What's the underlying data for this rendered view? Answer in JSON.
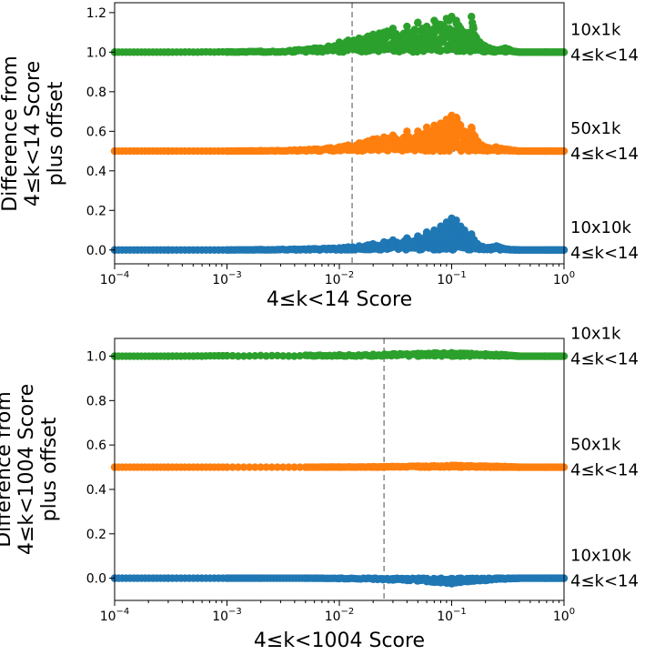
{
  "chart_data": [
    {
      "type": "scatter",
      "id": "top",
      "xscale": "log",
      "xlim": [
        0.0001,
        1
      ],
      "ylim": [
        -0.07,
        1.25
      ],
      "xlabel": "4≤k<14  Score",
      "ylabel_lines": [
        "Difference from",
        "4≤k<14 Score",
        "plus offset"
      ],
      "x_ticks": [
        {
          "value": 0.0001,
          "base": "10",
          "exp": "−4"
        },
        {
          "value": 0.001,
          "base": "10",
          "exp": "−3"
        },
        {
          "value": 0.01,
          "base": "10",
          "exp": "−2"
        },
        {
          "value": 0.1,
          "base": "10",
          "exp": "−1"
        },
        {
          "value": 1,
          "base": "10",
          "exp": "0"
        }
      ],
      "y_ticks": [
        {
          "value": 0.0,
          "label": "0.0"
        },
        {
          "value": 0.2,
          "label": "0.2"
        },
        {
          "value": 0.4,
          "label": "0.4"
        },
        {
          "value": 0.6,
          "label": "0.6"
        },
        {
          "value": 0.8,
          "label": "0.8"
        },
        {
          "value": 1.0,
          "label": "1.0"
        },
        {
          "value": 1.2,
          "label": "1.2"
        }
      ],
      "vline_x": 0.013,
      "series": [
        {
          "name": "10x10k",
          "sublabel": "4≤k<14",
          "color": "#1f77b4",
          "offset": 0.0,
          "points": [
            [
              0.0001,
              0.0
            ],
            [
              0.0003,
              0.0
            ],
            [
              0.001,
              0.0
            ],
            [
              0.002,
              0.002
            ],
            [
              0.004,
              0.004
            ],
            [
              0.006,
              0.006
            ],
            [
              0.008,
              0.008
            ],
            [
              0.01,
              0.01
            ],
            [
              0.012,
              0.015
            ],
            [
              0.015,
              0.02
            ],
            [
              0.018,
              0.025
            ],
            [
              0.02,
              0.03
            ],
            [
              0.025,
              0.04
            ],
            [
              0.03,
              0.05
            ],
            [
              0.035,
              0.03
            ],
            [
              0.04,
              0.06
            ],
            [
              0.045,
              0.04
            ],
            [
              0.05,
              0.07
            ],
            [
              0.055,
              0.05
            ],
            [
              0.06,
              0.09
            ],
            [
              0.065,
              0.06
            ],
            [
              0.07,
              0.1
            ],
            [
              0.075,
              0.05
            ],
            [
              0.08,
              0.12
            ],
            [
              0.085,
              0.08
            ],
            [
              0.09,
              0.14
            ],
            [
              0.1,
              0.16
            ],
            [
              0.11,
              0.15
            ],
            [
              0.12,
              0.12
            ],
            [
              0.13,
              0.1
            ],
            [
              0.14,
              0.06
            ],
            [
              0.15,
              0.08
            ],
            [
              0.17,
              0.03
            ],
            [
              0.2,
              0.01
            ],
            [
              0.25,
              0.02
            ],
            [
              0.3,
              0.005
            ],
            [
              0.4,
              0.0
            ],
            [
              0.67,
              0.0
            ],
            [
              1.0,
              0.0
            ]
          ]
        },
        {
          "name": "50x1k",
          "sublabel": "4≤k<14",
          "color": "#ff7f0e",
          "offset": 0.5,
          "points": [
            [
              0.0001,
              0.5
            ],
            [
              0.0003,
              0.5
            ],
            [
              0.001,
              0.5
            ],
            [
              0.002,
              0.502
            ],
            [
              0.004,
              0.505
            ],
            [
              0.006,
              0.51
            ],
            [
              0.008,
              0.515
            ],
            [
              0.01,
              0.52
            ],
            [
              0.012,
              0.53
            ],
            [
              0.015,
              0.54
            ],
            [
              0.018,
              0.55
            ],
            [
              0.02,
              0.56
            ],
            [
              0.025,
              0.57
            ],
            [
              0.03,
              0.58
            ],
            [
              0.035,
              0.55
            ],
            [
              0.04,
              0.6
            ],
            [
              0.045,
              0.56
            ],
            [
              0.05,
              0.6
            ],
            [
              0.055,
              0.58
            ],
            [
              0.06,
              0.62
            ],
            [
              0.065,
              0.6
            ],
            [
              0.07,
              0.63
            ],
            [
              0.08,
              0.64
            ],
            [
              0.09,
              0.66
            ],
            [
              0.1,
              0.68
            ],
            [
              0.11,
              0.67
            ],
            [
              0.12,
              0.63
            ],
            [
              0.13,
              0.6
            ],
            [
              0.14,
              0.58
            ],
            [
              0.15,
              0.62
            ],
            [
              0.17,
              0.55
            ],
            [
              0.2,
              0.52
            ],
            [
              0.25,
              0.52
            ],
            [
              0.3,
              0.51
            ],
            [
              0.4,
              0.5
            ],
            [
              0.67,
              0.5
            ],
            [
              1.0,
              0.5
            ]
          ]
        },
        {
          "name": "10x1k",
          "sublabel": "4≤k<14",
          "color": "#2ca02c",
          "offset": 1.0,
          "points": [
            [
              0.0001,
              1.0
            ],
            [
              0.0003,
              1.0
            ],
            [
              0.001,
              1.002
            ],
            [
              0.002,
              1.005
            ],
            [
              0.004,
              1.01
            ],
            [
              0.006,
              1.02
            ],
            [
              0.008,
              1.03
            ],
            [
              0.01,
              1.05
            ],
            [
              0.012,
              1.06
            ],
            [
              0.015,
              1.07
            ],
            [
              0.018,
              1.08
            ],
            [
              0.02,
              1.09
            ],
            [
              0.025,
              1.1
            ],
            [
              0.03,
              1.12
            ],
            [
              0.035,
              1.08
            ],
            [
              0.04,
              1.13
            ],
            [
              0.045,
              1.1
            ],
            [
              0.05,
              1.15
            ],
            [
              0.055,
              1.12
            ],
            [
              0.06,
              1.13
            ],
            [
              0.07,
              1.16
            ],
            [
              0.08,
              1.14
            ],
            [
              0.09,
              1.17
            ],
            [
              0.1,
              1.18
            ],
            [
              0.11,
              1.16
            ],
            [
              0.12,
              1.12
            ],
            [
              0.13,
              1.1
            ],
            [
              0.14,
              1.08
            ],
            [
              0.15,
              1.18
            ],
            [
              0.17,
              1.06
            ],
            [
              0.2,
              1.03
            ],
            [
              0.25,
              1.01
            ],
            [
              0.3,
              1.02
            ],
            [
              0.4,
              1.0
            ],
            [
              0.67,
              1.0
            ],
            [
              1.0,
              1.0
            ]
          ]
        }
      ]
    },
    {
      "type": "scatter",
      "id": "bottom",
      "xscale": "log",
      "xlim": [
        0.0001,
        1
      ],
      "ylim": [
        -0.1,
        1.08
      ],
      "xlabel": "4≤k<1004 Score",
      "ylabel_lines": [
        "Difference from",
        "4≤k<1004 Score",
        "plus offset"
      ],
      "x_ticks": [
        {
          "value": 0.0001,
          "base": "10",
          "exp": "−4"
        },
        {
          "value": 0.001,
          "base": "10",
          "exp": "−3"
        },
        {
          "value": 0.01,
          "base": "10",
          "exp": "−2"
        },
        {
          "value": 0.1,
          "base": "10",
          "exp": "−1"
        },
        {
          "value": 1,
          "base": "10",
          "exp": "0"
        }
      ],
      "y_ticks": [
        {
          "value": 0.0,
          "label": "0.0"
        },
        {
          "value": 0.2,
          "label": "0.2"
        },
        {
          "value": 0.4,
          "label": "0.4"
        },
        {
          "value": 0.6,
          "label": "0.6"
        },
        {
          "value": 0.8,
          "label": "0.8"
        },
        {
          "value": 1.0,
          "label": "1.0"
        }
      ],
      "vline_x": 0.025,
      "series": [
        {
          "name": "10x10k",
          "sublabel": "4≤k<14",
          "color": "#1f77b4",
          "offset": 0.0,
          "points": [
            [
              0.0001,
              0.0
            ],
            [
              0.0003,
              0.0
            ],
            [
              0.001,
              0.0
            ],
            [
              0.002,
              0.0
            ],
            [
              0.005,
              0.0
            ],
            [
              0.01,
              -0.002
            ],
            [
              0.02,
              -0.005
            ],
            [
              0.03,
              -0.008
            ],
            [
              0.04,
              -0.01
            ],
            [
              0.05,
              -0.012
            ],
            [
              0.06,
              -0.015
            ],
            [
              0.07,
              -0.018
            ],
            [
              0.08,
              -0.02
            ],
            [
              0.09,
              -0.022
            ],
            [
              0.1,
              -0.025
            ],
            [
              0.11,
              -0.02
            ],
            [
              0.12,
              -0.018
            ],
            [
              0.14,
              -0.015
            ],
            [
              0.16,
              -0.012
            ],
            [
              0.2,
              -0.01
            ],
            [
              0.25,
              -0.005
            ],
            [
              0.3,
              -0.004
            ],
            [
              0.4,
              0.0
            ],
            [
              0.67,
              0.0
            ],
            [
              1.0,
              0.0
            ]
          ]
        },
        {
          "name": "50x1k",
          "sublabel": "4≤k<14",
          "color": "#ff7f0e",
          "offset": 0.5,
          "points": [
            [
              0.0001,
              0.5
            ],
            [
              0.0003,
              0.5
            ],
            [
              0.001,
              0.5
            ],
            [
              0.005,
              0.5
            ],
            [
              0.01,
              0.501
            ],
            [
              0.02,
              0.502
            ],
            [
              0.03,
              0.503
            ],
            [
              0.05,
              0.505
            ],
            [
              0.07,
              0.506
            ],
            [
              0.1,
              0.508
            ],
            [
              0.12,
              0.507
            ],
            [
              0.15,
              0.506
            ],
            [
              0.2,
              0.505
            ],
            [
              0.25,
              0.504
            ],
            [
              0.3,
              0.503
            ],
            [
              0.4,
              0.5
            ],
            [
              0.67,
              0.5
            ],
            [
              1.0,
              0.5
            ]
          ]
        },
        {
          "name": "10x1k",
          "sublabel": "4≤k<14",
          "color": "#2ca02c",
          "offset": 1.0,
          "points": [
            [
              0.0001,
              1.0
            ],
            [
              0.0003,
              1.0
            ],
            [
              0.001,
              1.002
            ],
            [
              0.005,
              1.004
            ],
            [
              0.01,
              1.006
            ],
            [
              0.02,
              1.008
            ],
            [
              0.03,
              1.01
            ],
            [
              0.05,
              1.012
            ],
            [
              0.07,
              1.014
            ],
            [
              0.1,
              1.015
            ],
            [
              0.12,
              1.013
            ],
            [
              0.15,
              1.012
            ],
            [
              0.2,
              1.01
            ],
            [
              0.25,
              1.008
            ],
            [
              0.3,
              1.006
            ],
            [
              0.4,
              1.0
            ],
            [
              0.67,
              1.0
            ],
            [
              1.0,
              1.0
            ]
          ]
        }
      ]
    }
  ]
}
